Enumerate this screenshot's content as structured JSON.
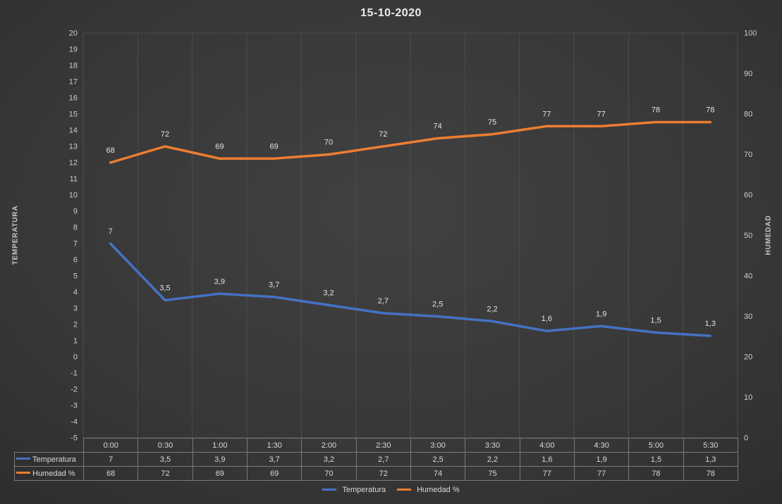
{
  "chart_data": {
    "type": "line",
    "title": "15-10-2020",
    "categories": [
      "0:00",
      "0:30",
      "1:00",
      "1:30",
      "2:00",
      "2:30",
      "3:00",
      "3:30",
      "4:00",
      "4:30",
      "5:00",
      "5:30"
    ],
    "series": [
      {
        "name": "Temperatura",
        "axis": "left",
        "color": "#4472C4",
        "values": [
          7,
          3.5,
          3.9,
          3.7,
          3.2,
          2.7,
          2.5,
          2.2,
          1.6,
          1.9,
          1.5,
          1.3
        ],
        "labels": [
          "7",
          "3,5",
          "3,9",
          "3,7",
          "3,2",
          "2,7",
          "2,5",
          "2,2",
          "1,6",
          "1,9",
          "1,5",
          "1,3"
        ]
      },
      {
        "name": "Humedad %",
        "axis": "right",
        "color": "#ED7D31",
        "values": [
          68,
          72,
          69,
          69,
          70,
          72,
          74,
          75,
          77,
          77,
          78,
          78
        ],
        "labels": [
          "68",
          "72",
          "69",
          "69",
          "70",
          "72",
          "74",
          "75",
          "77",
          "77",
          "78",
          "78"
        ]
      }
    ],
    "left_axis": {
      "title": "TEMPERATURA",
      "min": -5,
      "max": 20,
      "step": 1,
      "ticks": [
        "20",
        "19",
        "18",
        "17",
        "16",
        "15",
        "14",
        "13",
        "12",
        "11",
        "10",
        "9",
        "8",
        "7",
        "6",
        "5",
        "4",
        "3",
        "2",
        "1",
        "0",
        "-1",
        "-2",
        "-3",
        "-4",
        "-5"
      ]
    },
    "right_axis": {
      "title": "HUMEDAD",
      "min": 0,
      "max": 100,
      "step": 10,
      "ticks": [
        "100",
        "90",
        "80",
        "70",
        "60",
        "50",
        "40",
        "30",
        "20",
        "10",
        "0"
      ]
    },
    "legend_position": "bottom",
    "grid": "vertical-only",
    "data_table": true,
    "colors": {
      "background": "#383838",
      "gridline": "#4d4d4d",
      "tick_text": "#cdcdcd",
      "label_text": "#e3e3e3",
      "table_border": "#7a7a7a"
    }
  }
}
